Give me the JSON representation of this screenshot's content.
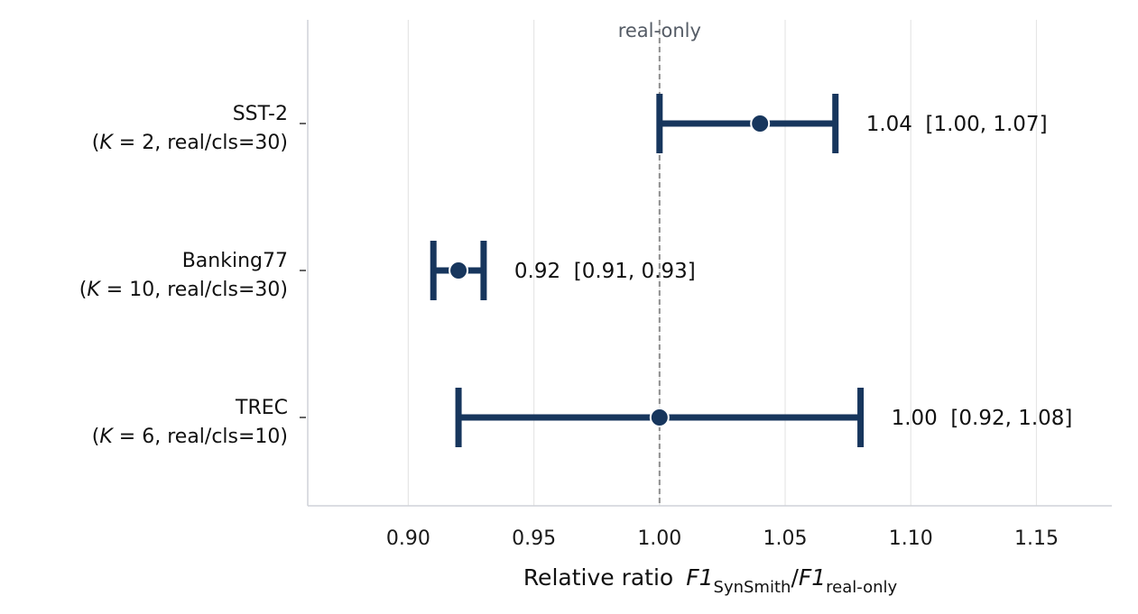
{
  "chart_data": {
    "type": "errorbar",
    "orientation": "horizontal",
    "title": "",
    "xlabel": {
      "prefix": "Relative ratio",
      "num_main": "F1",
      "num_sub": "SynSmith",
      "slash": "/",
      "den_main": "F1",
      "den_sub": "real-only"
    },
    "xlim": [
      0.86,
      1.18
    ],
    "xticks": [
      0.9,
      0.95,
      1.0,
      1.05,
      1.1,
      1.15
    ],
    "xtick_labels": [
      "0.90",
      "0.95",
      "1.00",
      "1.05",
      "1.10",
      "1.15"
    ],
    "grid": "vertical",
    "reference_line": {
      "x": 1.0,
      "style": "dashed",
      "label": "real-only"
    },
    "categories": [
      {
        "line1": "SST-2",
        "k_value": "2",
        "cls_text": ", real/cls=30)",
        "value": 1.04,
        "ci": [
          1.0,
          1.07
        ],
        "annotation": "1.04  [1.00, 1.07]"
      },
      {
        "line1": "Banking77",
        "k_value": "10",
        "cls_text": ", real/cls=30)",
        "value": 0.92,
        "ci": [
          0.91,
          0.93
        ],
        "annotation": "0.92  [0.91, 0.93]"
      },
      {
        "line1": "TREC",
        "k_value": "6",
        "cls_text": ", real/cls=10)",
        "value": 1.0,
        "ci": [
          0.92,
          1.08
        ],
        "annotation": "1.00  [0.92, 1.08]"
      }
    ],
    "colors": {
      "series": "#17365d",
      "reference": "#8c8c8c",
      "grid": "#e6e6e6",
      "axis": "#cfd2d8"
    }
  }
}
